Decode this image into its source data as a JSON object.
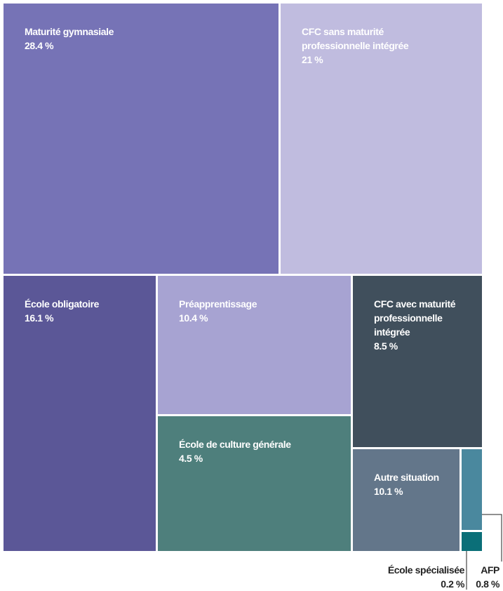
{
  "chart_data": {
    "type": "treemap",
    "categories": [
      "Maturité gymnasiale",
      "CFC sans maturité professionnelle intégrée",
      "École obligatoire",
      "Préapprentissage",
      "École de culture générale",
      "CFC avec maturité professionnelle intégrée",
      "Autre situation",
      "AFP",
      "École spécialisée"
    ],
    "values": [
      28.4,
      21,
      16.1,
      10.4,
      4.5,
      8.5,
      10.1,
      0.8,
      0.2
    ],
    "value_labels": [
      "28.4 %",
      "21 %",
      "16.1 %",
      "10.4 %",
      "4.5 %",
      "8.5 %",
      "10.1 %",
      "0.8 %",
      "0.2 %"
    ],
    "colors": [
      "#7673b6",
      "#c0bcdf",
      "#5b5797",
      "#a7a3d2",
      "#4e7f7c",
      "#404f5c",
      "#63768a",
      "#4a889e",
      "#0b6f78"
    ]
  }
}
